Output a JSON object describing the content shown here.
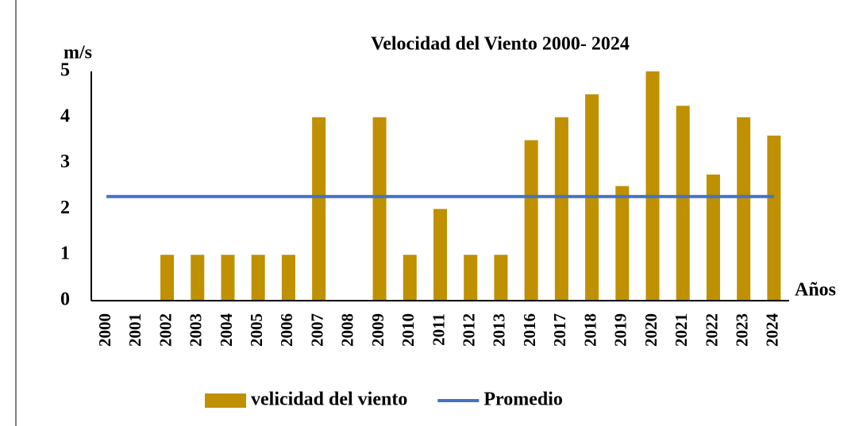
{
  "chart_data": {
    "type": "bar",
    "title": "Velocidad del Viento 2000- 2024",
    "y_label": "m/s",
    "x_label": "Años",
    "categories": [
      "2000",
      "2001",
      "2002",
      "2003",
      "2004",
      "2005",
      "2006",
      "2007",
      "2008",
      "2009",
      "2010",
      "2011",
      "2012",
      "2013",
      "2016",
      "2017",
      "2018",
      "2019",
      "2020",
      "2021",
      "2022",
      "2023",
      "2024"
    ],
    "series": [
      {
        "name": "velicidad del viento",
        "type": "bar",
        "color": "#bf9000",
        "values": [
          0,
          0,
          1,
          1,
          1,
          1,
          1,
          4,
          0,
          4,
          1,
          2,
          1,
          1,
          3.5,
          4,
          4.5,
          2.5,
          5,
          4.25,
          2.75,
          4,
          3.6
        ]
      },
      {
        "name": "Promedio",
        "type": "line",
        "color": "#4472c4",
        "values": [
          2.27,
          2.27,
          2.27,
          2.27,
          2.27,
          2.27,
          2.27,
          2.27,
          2.27,
          2.27,
          2.27,
          2.27,
          2.27,
          2.27,
          2.27,
          2.27,
          2.27,
          2.27,
          2.27,
          2.27,
          2.27,
          2.27,
          2.27
        ]
      }
    ],
    "ylim": [
      0,
      5
    ],
    "yticks": [
      0,
      1,
      2,
      3,
      4,
      5
    ],
    "grid": false,
    "legend": "bottom"
  }
}
